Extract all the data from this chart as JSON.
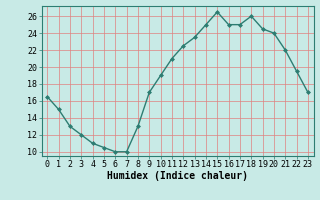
{
  "x": [
    0,
    1,
    2,
    3,
    4,
    5,
    6,
    7,
    8,
    9,
    10,
    11,
    12,
    13,
    14,
    15,
    16,
    17,
    18,
    19,
    20,
    21,
    22,
    23
  ],
  "y": [
    16.5,
    15.0,
    13.0,
    12.0,
    11.0,
    10.5,
    10.0,
    10.0,
    13.0,
    17.0,
    19.0,
    21.0,
    22.5,
    23.5,
    25.0,
    26.5,
    25.0,
    25.0,
    26.0,
    24.5,
    24.0,
    22.0,
    19.5,
    17.0
  ],
  "line_color": "#2d7d72",
  "marker": "D",
  "marker_size": 2.0,
  "bg_color": "#c8eae6",
  "grid_color": "#e08080",
  "xlabel": "Humidex (Indice chaleur)",
  "ylim": [
    9.5,
    27.2
  ],
  "xlim": [
    -0.5,
    23.5
  ],
  "yticks": [
    10,
    12,
    14,
    16,
    18,
    20,
    22,
    24,
    26
  ],
  "xticks": [
    0,
    1,
    2,
    3,
    4,
    5,
    6,
    7,
    8,
    9,
    10,
    11,
    12,
    13,
    14,
    15,
    16,
    17,
    18,
    19,
    20,
    21,
    22,
    23
  ],
  "linewidth": 1.0,
  "label_fontsize": 7,
  "tick_fontsize": 6
}
